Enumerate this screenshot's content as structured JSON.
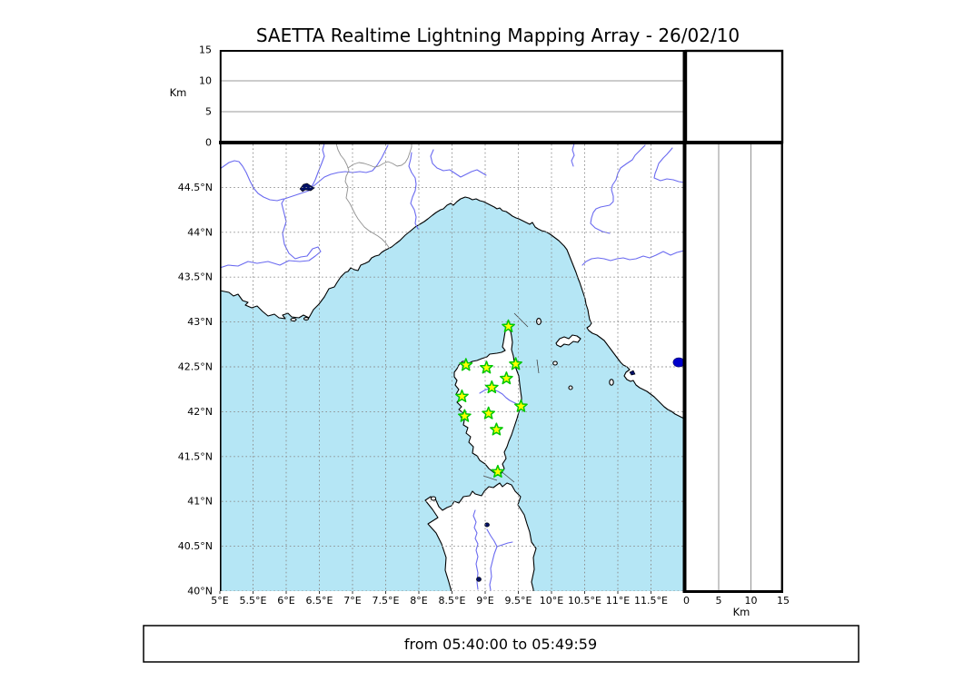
{
  "title": "SAETTA Realtime Lightning Mapping Array - 26/02/10",
  "footer": {
    "time_range": "from 05:40:00 to 05:49:59"
  },
  "colors": {
    "sea": "#b5e6f5",
    "land": "#ffffff",
    "coastline": "#000000",
    "river": "#6a6af0",
    "grid": "#8a8a8a",
    "station_fill": "#ffff00",
    "station_stroke": "#00c800",
    "lake_dot": "#0000cc",
    "frame": "#000000"
  },
  "chart_data": [
    {
      "id": "alt-vs-lon-panel",
      "type": "scatter",
      "position": "top",
      "ylabel": "Km",
      "ylim": [
        0,
        15
      ],
      "yticks": [
        0,
        5,
        10,
        15
      ],
      "ygrid": [
        5,
        10
      ],
      "xlim": [
        5,
        12
      ],
      "points": []
    },
    {
      "id": "alt-histogram-panel",
      "type": "scatter",
      "position": "top-right",
      "points": []
    },
    {
      "id": "map-panel",
      "type": "scatter",
      "position": "main",
      "xlim": [
        5,
        12
      ],
      "ylim": [
        40,
        45
      ],
      "grid": "dashed 0.5deg",
      "xticks": [
        {
          "value": 5,
          "label": "5°E"
        },
        {
          "value": 5.5,
          "label": "5.5°E"
        },
        {
          "value": 6,
          "label": "6°E"
        },
        {
          "value": 6.5,
          "label": "6.5°E"
        },
        {
          "value": 7,
          "label": "7°E"
        },
        {
          "value": 7.5,
          "label": "7.5°E"
        },
        {
          "value": 8,
          "label": "8°E"
        },
        {
          "value": 8.5,
          "label": "8.5°E"
        },
        {
          "value": 9,
          "label": "9°E"
        },
        {
          "value": 9.5,
          "label": "9.5°E"
        },
        {
          "value": 10,
          "label": "10°E"
        },
        {
          "value": 10.5,
          "label": "10.5°E"
        },
        {
          "value": 11,
          "label": "11°E"
        },
        {
          "value": 11.5,
          "label": "11.5°E"
        }
      ],
      "yticks": [
        {
          "value": 40,
          "label": "40°N"
        },
        {
          "value": 40.5,
          "label": "40.5°N"
        },
        {
          "value": 41,
          "label": "41°N"
        },
        {
          "value": 41.5,
          "label": "41.5°N"
        },
        {
          "value": 42,
          "label": "42°N"
        },
        {
          "value": 42.5,
          "label": "42.5°N"
        },
        {
          "value": 43,
          "label": "43°N"
        },
        {
          "value": 43.5,
          "label": "43.5°N"
        },
        {
          "value": 44,
          "label": "44°N"
        },
        {
          "value": 44.5,
          "label": "44.5°N"
        }
      ],
      "stations": [
        {
          "lon": 9.35,
          "lat": 42.95
        },
        {
          "lon": 8.71,
          "lat": 42.52
        },
        {
          "lon": 9.02,
          "lat": 42.49
        },
        {
          "lon": 9.46,
          "lat": 42.53
        },
        {
          "lon": 9.32,
          "lat": 42.37
        },
        {
          "lon": 9.1,
          "lat": 42.27
        },
        {
          "lon": 8.65,
          "lat": 42.17
        },
        {
          "lon": 9.54,
          "lat": 42.06
        },
        {
          "lon": 8.69,
          "lat": 41.95
        },
        {
          "lon": 9.05,
          "lat": 41.98
        },
        {
          "lon": 9.17,
          "lat": 41.8
        },
        {
          "lon": 9.19,
          "lat": 41.33
        }
      ],
      "lake_dots": [
        {
          "lon": 11.92,
          "lat": 42.55
        }
      ],
      "lightning_points": []
    },
    {
      "id": "alt-vs-lat-panel",
      "type": "scatter",
      "position": "right",
      "xlabel": "Km",
      "xlim": [
        0,
        15
      ],
      "xticks": [
        0,
        5,
        10,
        15
      ],
      "xgrid": [
        5,
        10
      ],
      "ylim": [
        40,
        45
      ],
      "points": []
    }
  ]
}
